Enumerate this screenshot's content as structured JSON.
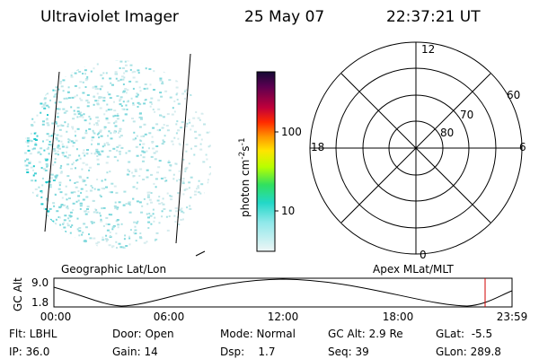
{
  "header": {
    "instrument": "Ultraviolet Imager",
    "date": "25 May 07",
    "time": "22:37:21 UT"
  },
  "colorbar": {
    "label": {
      "base": "photon cm",
      "exp1": "-2",
      "mid": "s",
      "exp2": "-1"
    },
    "ticks": [
      "100",
      "10"
    ]
  },
  "polar": {
    "labels": {
      "top": "12",
      "right": "6",
      "left": "18",
      "bottom": "0"
    },
    "rings": [
      "60",
      "70",
      "80"
    ]
  },
  "timeline": {
    "left_title": "Geographic Lat/Lon",
    "right_title": "Apex MLat/MLT",
    "axis_label": "GC Alt",
    "yticks": [
      "9.0",
      "1.8"
    ],
    "xticks": [
      "00:00",
      "06:00",
      "12:00",
      "18:00",
      "23:59"
    ]
  },
  "status": {
    "rows": [
      [
        "Flt: LBHL",
        "Door: Open",
        "Mode: Normal",
        "GC Alt: 2.9 Re",
        "GLat:  -5.5"
      ],
      [
        "IP: 36.0",
        "Gain: 14",
        "Dsp:    1.7",
        "Seq: 39",
        "GLon: 289.8"
      ]
    ]
  }
}
